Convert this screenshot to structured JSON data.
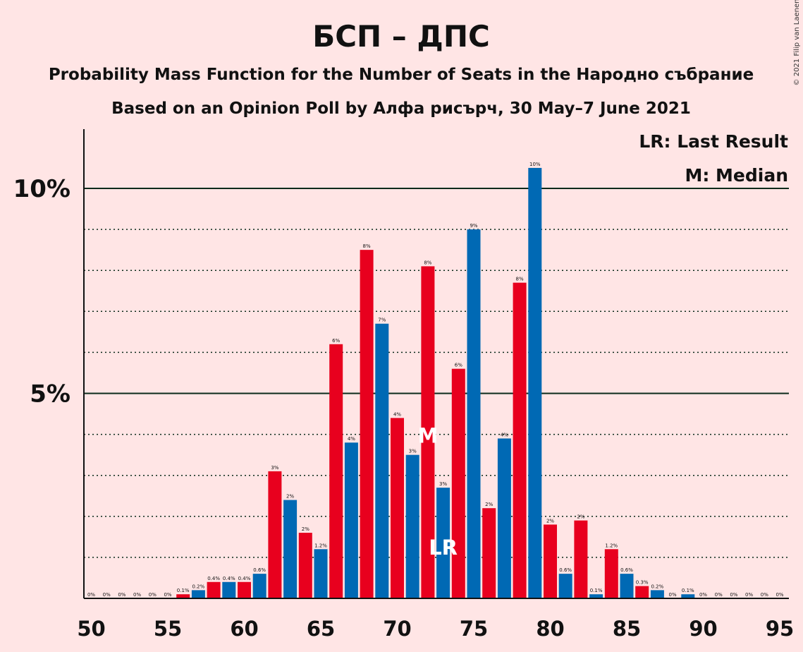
{
  "header": {
    "title": "БСП – ДПС",
    "subtitle": "Probability Mass Function for the Number of Seats in the Народно събрание",
    "source": "Based on an Opinion Poll by Алфа рисърч, 30 May–7 June 2021",
    "copyright": "© 2021 Filip van Laenen"
  },
  "legend": {
    "last_result": "LR: Last Result",
    "median": "M: Median"
  },
  "colors": {
    "background": "#FFE5E5",
    "red": "#E8001E",
    "blue": "#0069B4",
    "grid": "#0A2A1A",
    "text": "#111111"
  },
  "chart_data": {
    "type": "bar",
    "x": [
      50,
      51,
      52,
      53,
      54,
      55,
      56,
      57,
      58,
      59,
      60,
      61,
      62,
      63,
      64,
      65,
      66,
      67,
      68,
      69,
      70,
      71,
      72,
      73,
      74,
      75,
      76,
      77,
      78,
      79,
      80,
      81,
      82,
      83,
      84,
      85,
      86,
      87,
      88,
      89,
      90,
      91,
      92,
      93,
      94,
      95
    ],
    "values": [
      0,
      0,
      0,
      0,
      0,
      0,
      0.1,
      0.2,
      0.4,
      0.4,
      0.4,
      0.6,
      3.1,
      2.4,
      1.6,
      1.2,
      6.2,
      3.8,
      8.5,
      6.7,
      4.4,
      3.5,
      8.1,
      2.7,
      5.6,
      9.0,
      2.2,
      3.9,
      7.7,
      10.5,
      1.8,
      0.6,
      1.9,
      0.1,
      1.2,
      0.6,
      0.3,
      0.2,
      0,
      0.1,
      0,
      0,
      0,
      0,
      0,
      0
    ],
    "labels": [
      "0%",
      "0%",
      "0%",
      "0%",
      "0%",
      "0%",
      "0.1%",
      "0.2%",
      "0.4%",
      "0.4%",
      "0.4%",
      "0.6%",
      "3%",
      "2%",
      "2%",
      "1.2%",
      "6%",
      "4%",
      "8%",
      "7%",
      "4%",
      "3%",
      "8%",
      "3%",
      "6%",
      "9%",
      "2%",
      "4%",
      "8%",
      "10%",
      "2%",
      "0.6%",
      "2%",
      "0.1%",
      "1.2%",
      "0.6%",
      "0.3%",
      "0.2%",
      "0%",
      "0.1%",
      "0%",
      "0%",
      "0%",
      "0%",
      "0%",
      "0%"
    ],
    "colors": [
      "red",
      "blue",
      "red",
      "blue",
      "red",
      "blue",
      "red",
      "blue",
      "red",
      "blue",
      "red",
      "blue",
      "red",
      "blue",
      "red",
      "blue",
      "red",
      "blue",
      "red",
      "blue",
      "red",
      "blue",
      "red",
      "blue",
      "red",
      "blue",
      "red",
      "blue",
      "red",
      "blue",
      "red",
      "blue",
      "red",
      "blue",
      "red",
      "blue",
      "red",
      "blue",
      "red",
      "blue",
      "red",
      "blue",
      "red",
      "blue",
      "red",
      "blue"
    ],
    "x_ticks": [
      50,
      55,
      60,
      65,
      70,
      75,
      80,
      85,
      90,
      95
    ],
    "x_tick_labels": [
      "50",
      "55",
      "60",
      "65",
      "70",
      "75",
      "80",
      "85",
      "90",
      "95"
    ],
    "y_ticks": [
      5,
      10
    ],
    "y_tick_labels": [
      "5%",
      "10%"
    ],
    "ylim": [
      0,
      11.5
    ],
    "minor_grid": [
      1,
      2,
      3,
      4,
      6,
      7,
      8,
      9
    ],
    "median": 72,
    "median_label": "M",
    "last_result": 73,
    "last_result_label": "LR"
  }
}
